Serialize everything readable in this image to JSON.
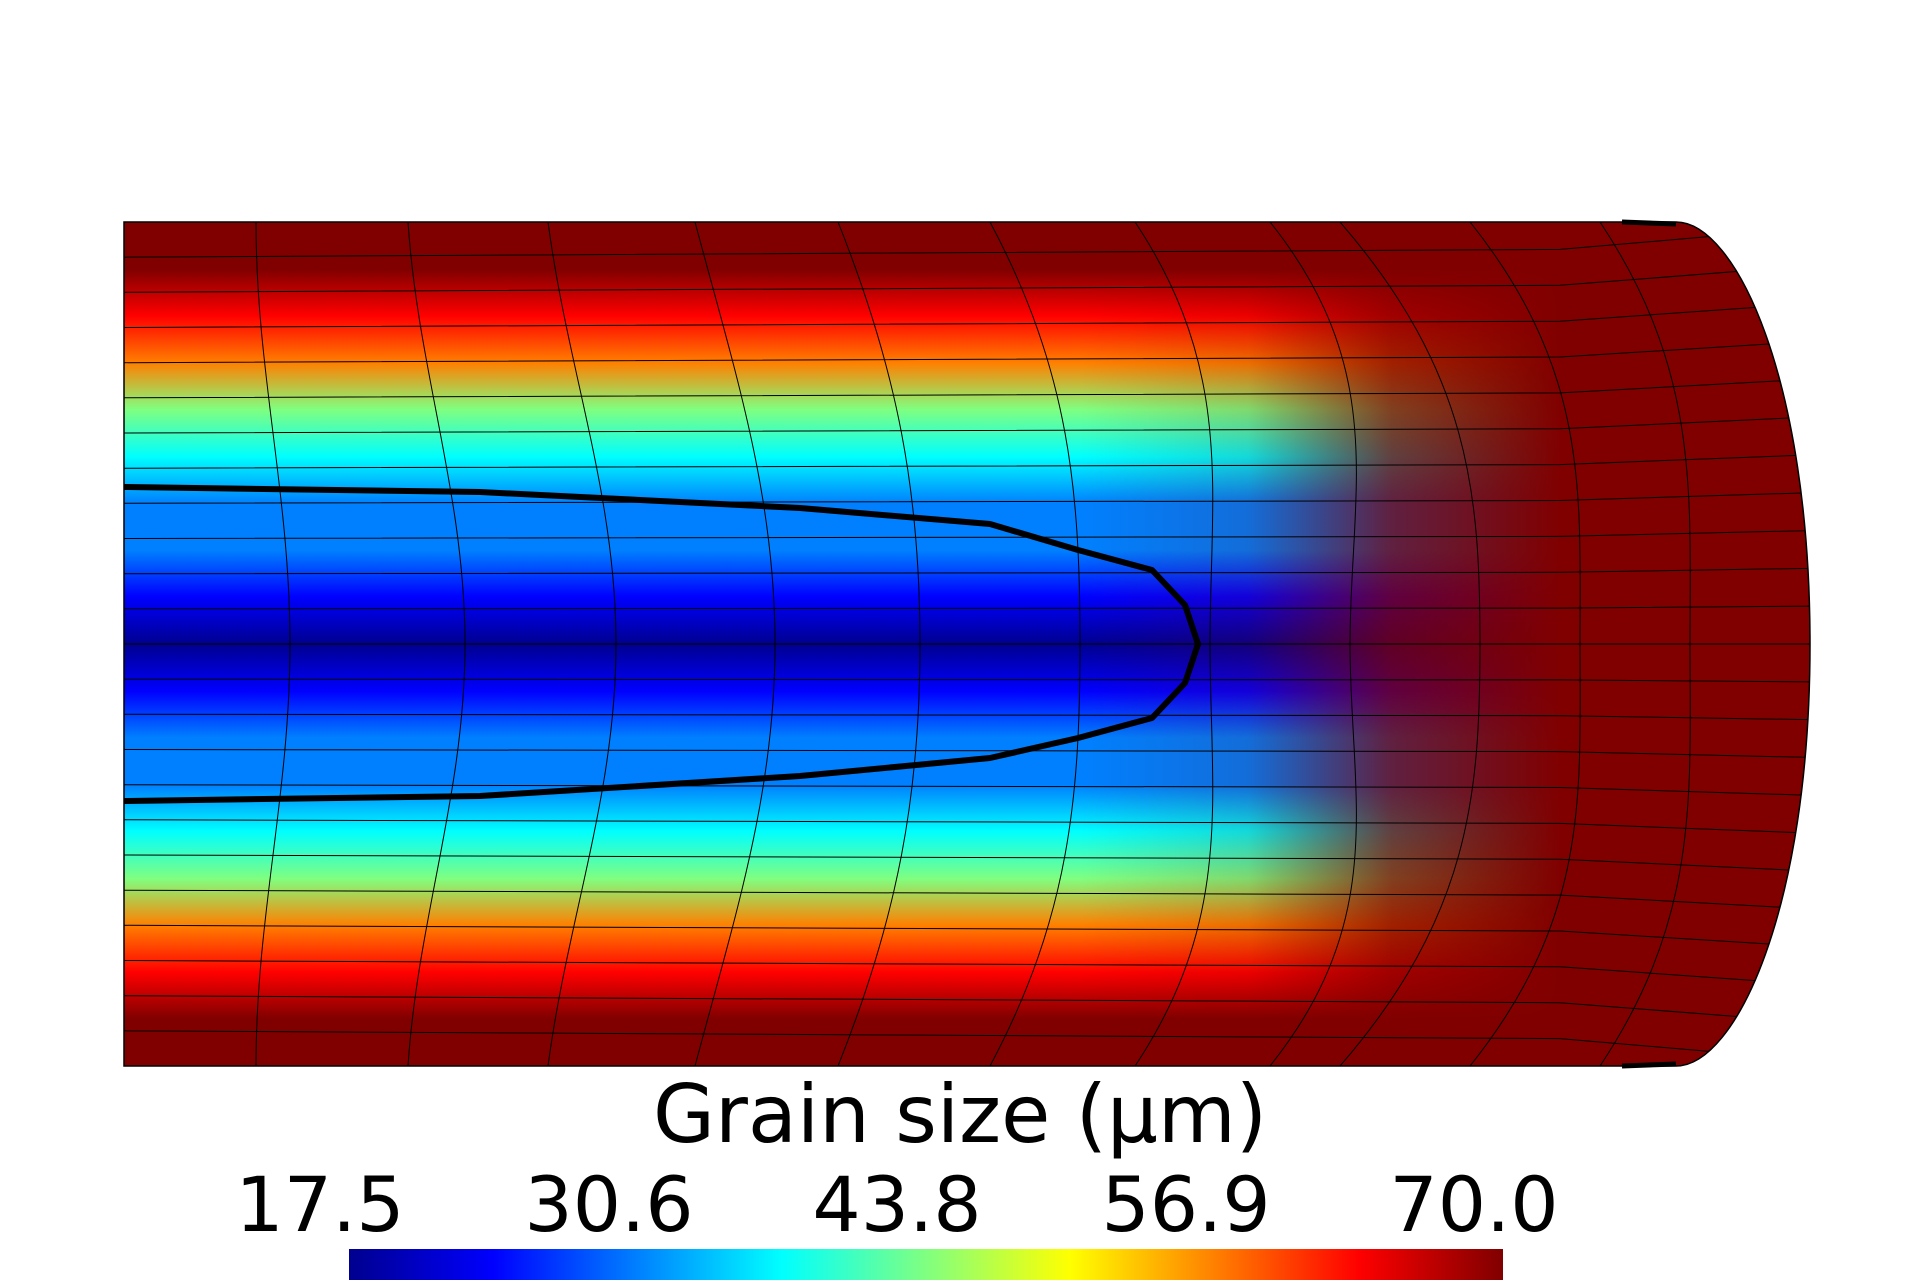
{
  "legend": {
    "title": "Grain size (μm)",
    "ticks": [
      "17.5",
      "30.6",
      "43.8",
      "56.9",
      "70.0"
    ],
    "min": 17.5,
    "max": 70.0,
    "colormap": [
      "#00008f",
      "#0000ff",
      "#0080ff",
      "#00ffff",
      "#80ff80",
      "#ffff00",
      "#ff8000",
      "#ff0000",
      "#800000"
    ]
  },
  "field": {
    "quantity": "grain size",
    "unit": "μm",
    "center_value": 20.5,
    "surface_value": 70.0,
    "tip_value": 70.0,
    "contour_value": 35.0,
    "contour_color": "#000000",
    "mesh_line_color": "#000000"
  }
}
